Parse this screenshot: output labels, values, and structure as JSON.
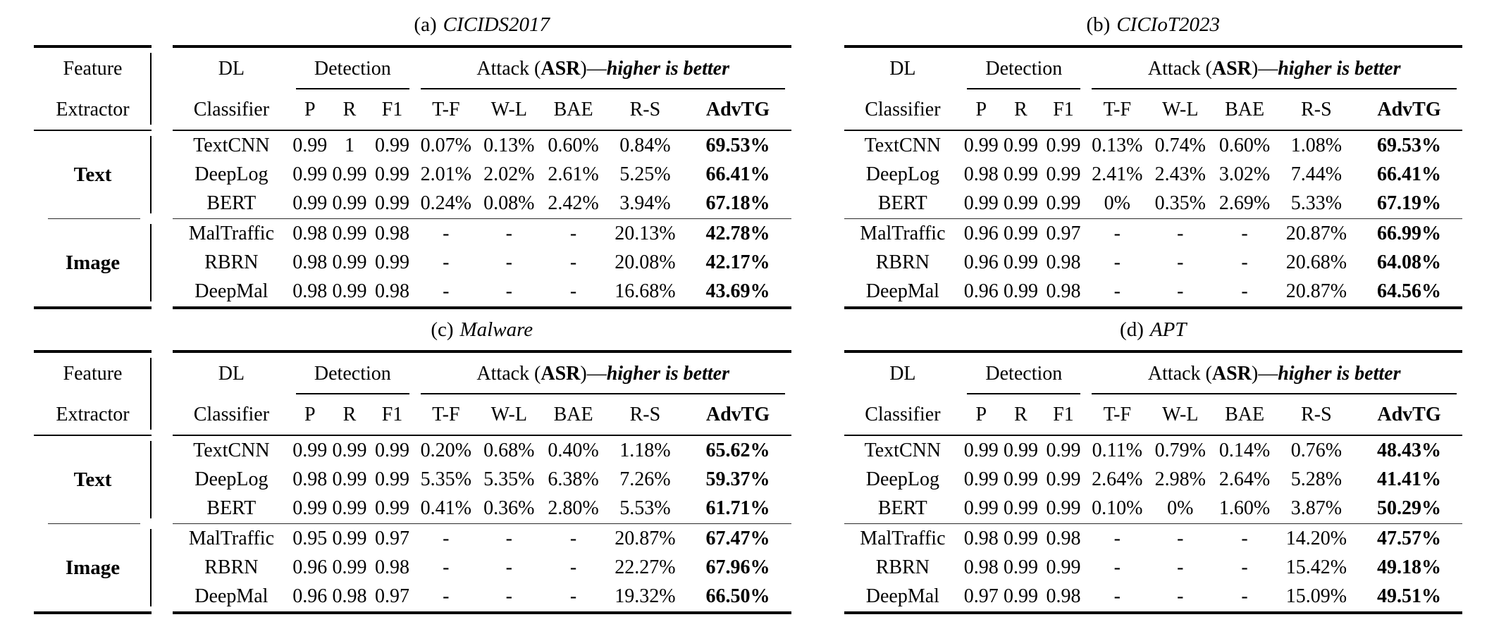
{
  "colors": {
    "ink": "#000000",
    "background": "#ffffff"
  },
  "feature_block": {
    "line1": "Feature",
    "line2": "Extractor",
    "groups": [
      "Text",
      "Image"
    ]
  },
  "header": {
    "dl": "DL",
    "classifier": "Classifier",
    "detection": "Detection",
    "attack": {
      "prefix": "Attack (",
      "asr": "ASR",
      "mid": ")—",
      "better": "higher is better"
    },
    "columns": [
      "P",
      "R",
      "F1",
      "T-F",
      "W-L",
      "BAE",
      "R-S"
    ],
    "advtg": "AdvTG"
  },
  "tables": [
    {
      "caption_label": "(a)",
      "caption_name": "CICIDS2017",
      "text_rows": [
        [
          "TextCNN",
          "0.99",
          "1",
          "0.99",
          "0.07%",
          "0.13%",
          "0.60%",
          "0.84%",
          "69.53%"
        ],
        [
          "DeepLog",
          "0.99",
          "0.99",
          "0.99",
          "2.01%",
          "2.02%",
          "2.61%",
          "5.25%",
          "66.41%"
        ],
        [
          "BERT",
          "0.99",
          "0.99",
          "0.99",
          "0.24%",
          "0.08%",
          "2.42%",
          "3.94%",
          "67.18%"
        ]
      ],
      "image_rows": [
        [
          "MalTraffic",
          "0.98",
          "0.99",
          "0.98",
          "-",
          "-",
          "-",
          "20.13%",
          "42.78%"
        ],
        [
          "RBRN",
          "0.98",
          "0.99",
          "0.99",
          "-",
          "-",
          "-",
          "20.08%",
          "42.17%"
        ],
        [
          "DeepMal",
          "0.98",
          "0.99",
          "0.98",
          "-",
          "-",
          "-",
          "16.68%",
          "43.69%"
        ]
      ]
    },
    {
      "caption_label": "(b)",
      "caption_name": "CICIoT2023",
      "text_rows": [
        [
          "TextCNN",
          "0.99",
          "0.99",
          "0.99",
          "0.13%",
          "0.74%",
          "0.60%",
          "1.08%",
          "69.53%"
        ],
        [
          "DeepLog",
          "0.98",
          "0.99",
          "0.99",
          "2.41%",
          "2.43%",
          "3.02%",
          "7.44%",
          "66.41%"
        ],
        [
          "BERT",
          "0.99",
          "0.99",
          "0.99",
          "0%",
          "0.35%",
          "2.69%",
          "5.33%",
          "67.19%"
        ]
      ],
      "image_rows": [
        [
          "MalTraffic",
          "0.96",
          "0.99",
          "0.97",
          "-",
          "-",
          "-",
          "20.87%",
          "66.99%"
        ],
        [
          "RBRN",
          "0.96",
          "0.99",
          "0.98",
          "-",
          "-",
          "-",
          "20.68%",
          "64.08%"
        ],
        [
          "DeepMal",
          "0.96",
          "0.99",
          "0.98",
          "-",
          "-",
          "-",
          "20.87%",
          "64.56%"
        ]
      ]
    },
    {
      "caption_label": "(c)",
      "caption_name": "Malware",
      "text_rows": [
        [
          "TextCNN",
          "0.99",
          "0.99",
          "0.99",
          "0.20%",
          "0.68%",
          "0.40%",
          "1.18%",
          "65.62%"
        ],
        [
          "DeepLog",
          "0.98",
          "0.99",
          "0.99",
          "5.35%",
          "5.35%",
          "6.38%",
          "7.26%",
          "59.37%"
        ],
        [
          "BERT",
          "0.99",
          "0.99",
          "0.99",
          "0.41%",
          "0.36%",
          "2.80%",
          "5.53%",
          "61.71%"
        ]
      ],
      "image_rows": [
        [
          "MalTraffic",
          "0.95",
          "0.99",
          "0.97",
          "-",
          "-",
          "-",
          "20.87%",
          "67.47%"
        ],
        [
          "RBRN",
          "0.96",
          "0.99",
          "0.98",
          "-",
          "-",
          "-",
          "22.27%",
          "67.96%"
        ],
        [
          "DeepMal",
          "0.96",
          "0.98",
          "0.97",
          "-",
          "-",
          "-",
          "19.32%",
          "66.50%"
        ]
      ]
    },
    {
      "caption_label": "(d)",
      "caption_name": "APT",
      "text_rows": [
        [
          "TextCNN",
          "0.99",
          "0.99",
          "0.99",
          "0.11%",
          "0.79%",
          "0.14%",
          "0.76%",
          "48.43%"
        ],
        [
          "DeepLog",
          "0.99",
          "0.99",
          "0.99",
          "2.64%",
          "2.98%",
          "2.64%",
          "5.28%",
          "41.41%"
        ],
        [
          "BERT",
          "0.99",
          "0.99",
          "0.99",
          "0.10%",
          "0%",
          "1.60%",
          "3.87%",
          "50.29%"
        ]
      ],
      "image_rows": [
        [
          "MalTraffic",
          "0.98",
          "0.99",
          "0.98",
          "-",
          "-",
          "-",
          "14.20%",
          "47.57%"
        ],
        [
          "RBRN",
          "0.98",
          "0.99",
          "0.99",
          "-",
          "-",
          "-",
          "15.42%",
          "49.18%"
        ],
        [
          "DeepMal",
          "0.97",
          "0.99",
          "0.98",
          "-",
          "-",
          "-",
          "15.09%",
          "49.51%"
        ]
      ]
    }
  ]
}
